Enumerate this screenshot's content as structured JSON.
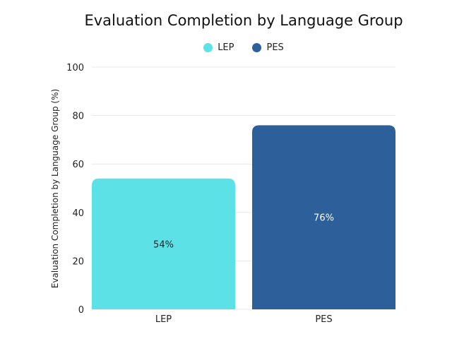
{
  "chart_data": {
    "type": "bar",
    "title": "Evaluation Completion by Language Group",
    "xlabel": "",
    "ylabel": "Evaluation Completion by Language Group (%)",
    "categories": [
      "LEP",
      "PES"
    ],
    "series": [
      {
        "name": "LEP",
        "values": [
          54,
          null
        ],
        "color": "#5CE1E6"
      },
      {
        "name": "PES",
        "values": [
          null,
          76
        ],
        "color": "#2D5F9A"
      }
    ],
    "data_labels": [
      "54%",
      "76%"
    ],
    "label_colors": [
      "#222222",
      "#ffffff"
    ],
    "ylim": [
      0,
      100
    ],
    "yticks": [
      0,
      20,
      40,
      60,
      80,
      100
    ],
    "grid": true,
    "legend": "top-center"
  }
}
